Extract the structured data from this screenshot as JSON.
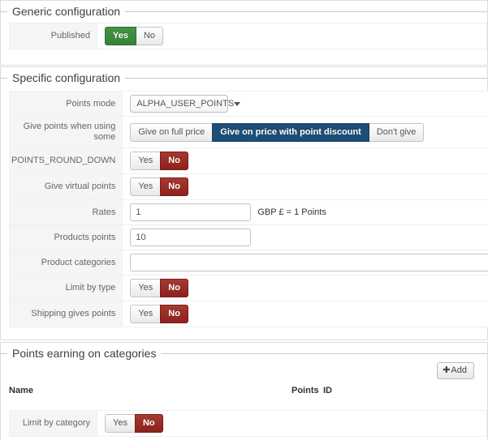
{
  "generic": {
    "title": "Generic configuration",
    "published": {
      "label": "Published",
      "yes": "Yes",
      "no": "No",
      "selected": "Yes"
    }
  },
  "specific": {
    "title": "Specific configuration",
    "points_mode": {
      "label": "Points mode",
      "value": "ALPHA_USER_POINTS"
    },
    "give_points": {
      "label": "Give points when using some",
      "options": [
        "Give on full price",
        "Give on price with point discount",
        "Don't give"
      ],
      "selected": "Give on price with point discount"
    },
    "round_down": {
      "label": "POINTS_ROUND_DOWN",
      "yes": "Yes",
      "no": "No",
      "selected": "No"
    },
    "virtual_points": {
      "label": "Give virtual points",
      "yes": "Yes",
      "no": "No",
      "selected": "No"
    },
    "rates": {
      "label": "Rates",
      "value": "1",
      "suffix": "GBP £ = 1 Points"
    },
    "products_points": {
      "label": "Products points",
      "value": "10"
    },
    "product_categories": {
      "label": "Product categories",
      "value": ""
    },
    "limit_by_type": {
      "label": "Limit by type",
      "yes": "Yes",
      "no": "No",
      "selected": "No"
    },
    "shipping_gives_points": {
      "label": "Shipping gives points",
      "yes": "Yes",
      "no": "No",
      "selected": "No"
    }
  },
  "categories": {
    "title": "Points earning on categories",
    "add_button": "Add",
    "add_icon": "✚",
    "headers": {
      "name": "Name",
      "points": "Points",
      "id": "ID"
    },
    "limit_by_category": {
      "label": "Limit by category",
      "yes": "Yes",
      "no": "No",
      "selected": "No"
    }
  },
  "colors": {
    "yes_green": "#3c8b3c",
    "no_red": "#9b2a24",
    "selected_blue": "#1c4e78"
  }
}
